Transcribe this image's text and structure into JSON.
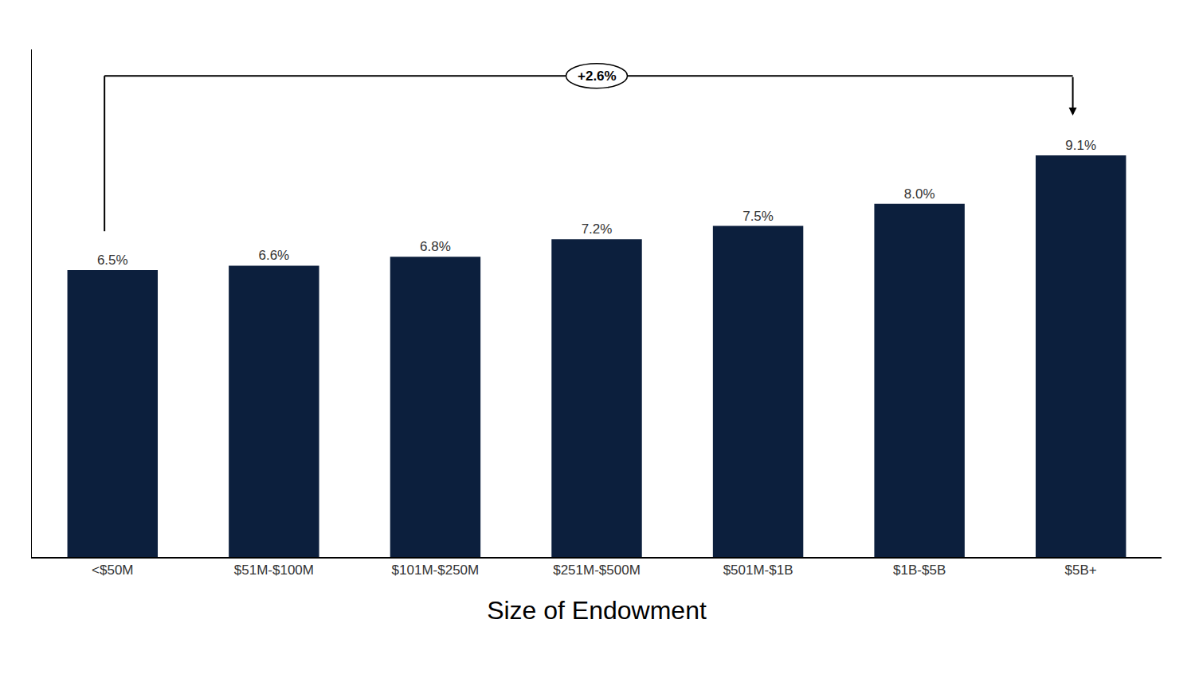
{
  "chart_data": {
    "type": "bar",
    "xlabel": "Size of Endowment",
    "categories": [
      "<$50M",
      "$51M-$100M",
      "$101M-$250M",
      "$251M-$500M",
      "$501M-$1B",
      "$1B-$5B",
      "$5B+"
    ],
    "values": [
      6.5,
      6.6,
      6.8,
      7.2,
      7.5,
      8.0,
      9.1
    ],
    "value_labels": [
      "6.5%",
      "6.6%",
      "6.8%",
      "7.2%",
      "7.5%",
      "8.0%",
      "9.1%"
    ],
    "color": "#0c1f3d",
    "ylim": [
      0,
      11.5
    ],
    "yticks": [],
    "tick_labels": "x",
    "grid": false,
    "data_labels": true,
    "annotations": [
      {
        "text": "+2.6%",
        "value": 2.6
      }
    ]
  }
}
